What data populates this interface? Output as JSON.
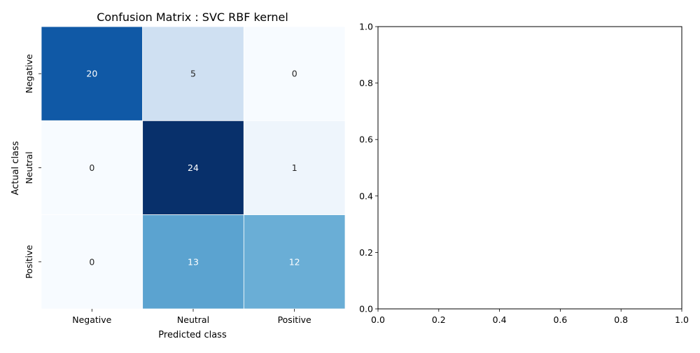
{
  "chart_data": [
    {
      "type": "heatmap",
      "title": "Confusion Matrix : SVC RBF kernel",
      "xlabel": "Predicted class",
      "ylabel": "Actual class",
      "x_categories": [
        "Negative",
        "Neutral",
        "Positive"
      ],
      "y_categories": [
        "Negative",
        "Neutral",
        "Positive"
      ],
      "values": [
        [
          20,
          5,
          0
        ],
        [
          0,
          24,
          1
        ],
        [
          0,
          13,
          12
        ]
      ],
      "colormap": "Blues",
      "colorbar": false,
      "value_range": [
        0,
        24
      ],
      "cell_colors": [
        [
          "#1059a6",
          "#cfe0f2",
          "#f7fbff"
        ],
        [
          "#f7fbff",
          "#08306b",
          "#eef5fc"
        ],
        [
          "#f7fbff",
          "#5ba3d0",
          "#6aaed6"
        ]
      ],
      "light_text_color": "#ffffff",
      "dark_text_color": "#262626"
    },
    {
      "type": "scatter",
      "title": "",
      "xlabel": "",
      "ylabel": "",
      "series": [],
      "xlim": [
        0.0,
        1.0
      ],
      "ylim": [
        0.0,
        1.0
      ],
      "x_ticks": [
        "0.0",
        "0.2",
        "0.4",
        "0.6",
        "0.8",
        "1.0"
      ],
      "y_ticks": [
        "0.0",
        "0.2",
        "0.4",
        "0.6",
        "0.8",
        "1.0"
      ],
      "grid": false
    }
  ]
}
